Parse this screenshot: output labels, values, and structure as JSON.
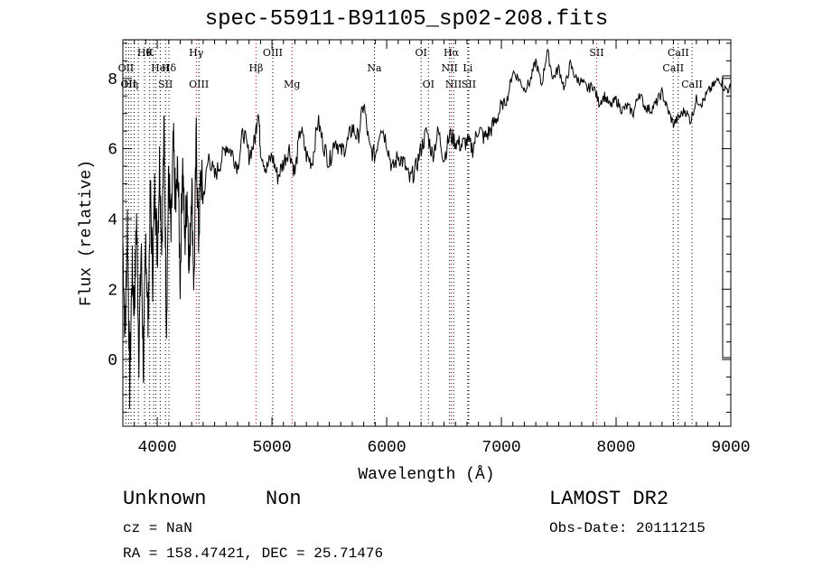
{
  "chart_data": {
    "type": "line",
    "title": "spec-55911-B91105_sp02-208.fits",
    "xlabel": "Wavelength (Å)",
    "ylabel": "Flux (relative)",
    "xlim": [
      3700,
      9000
    ],
    "ylim": [
      -1.9,
      9.1
    ],
    "x_ticks": [
      4000,
      5000,
      6000,
      7000,
      8000,
      9000
    ],
    "y_ticks": [
      0,
      2,
      4,
      6,
      8
    ],
    "series": [
      {
        "line_color": "#000000",
        "x": [
          3700,
          3720,
          3740,
          3760,
          3780,
          3800,
          3820,
          3840,
          3860,
          3880,
          3900,
          3920,
          3940,
          3960,
          3980,
          4000,
          4020,
          4040,
          4060,
          4080,
          4100,
          4120,
          4140,
          4160,
          4180,
          4200,
          4220,
          4240,
          4260,
          4280,
          4300,
          4320,
          4340,
          4360,
          4380,
          4400,
          4450,
          4500,
          4550,
          4600,
          4650,
          4700,
          4750,
          4800,
          4850,
          4880,
          4900,
          4950,
          5000,
          5050,
          5100,
          5150,
          5200,
          5250,
          5300,
          5350,
          5400,
          5450,
          5500,
          5550,
          5600,
          5650,
          5700,
          5750,
          5800,
          5850,
          5900,
          5950,
          6000,
          6050,
          6100,
          6150,
          6200,
          6250,
          6300,
          6350,
          6400,
          6450,
          6500,
          6550,
          6600,
          6650,
          6700,
          6750,
          6800,
          6850,
          6900,
          6950,
          7000,
          7050,
          7100,
          7150,
          7200,
          7250,
          7300,
          7350,
          7400,
          7450,
          7500,
          7550,
          7600,
          7650,
          7700,
          7750,
          7800,
          7850,
          7900,
          7950,
          8000,
          8050,
          8100,
          8150,
          8200,
          8250,
          8300,
          8350,
          8400,
          8450,
          8500,
          8550,
          8600,
          8650,
          8700,
          8750,
          8800,
          8850,
          8900,
          8950,
          9000
        ],
        "y": [
          3.4,
          0.6,
          4.0,
          -0.8,
          2.6,
          1.5,
          4.0,
          0.2,
          3.2,
          -0.3,
          3.5,
          1.0,
          4.8,
          2.4,
          5.1,
          3.0,
          5.6,
          3.3,
          6.6,
          1.1,
          5.4,
          3.4,
          6.2,
          4.2,
          5.5,
          2.2,
          5.8,
          3.3,
          4.8,
          2.6,
          5.2,
          2.0,
          6.4,
          3.4,
          5.3,
          4.6,
          5.8,
          5.2,
          5.6,
          6.1,
          5.9,
          5.5,
          6.5,
          5.8,
          6.2,
          7.2,
          6.0,
          5.4,
          5.8,
          5.2,
          5.6,
          6.0,
          5.3,
          6.6,
          5.8,
          5.6,
          6.8,
          6.1,
          5.6,
          6.3,
          5.9,
          6.1,
          6.6,
          6.3,
          7.3,
          6.0,
          5.8,
          6.7,
          6.2,
          5.4,
          5.8,
          5.6,
          5.1,
          5.4,
          6.0,
          6.5,
          5.8,
          6.5,
          5.7,
          6.4,
          6.2,
          6.1,
          6.2,
          6.0,
          6.6,
          6.3,
          6.5,
          6.8,
          7.2,
          7.4,
          8.2,
          8.0,
          7.7,
          7.9,
          8.5,
          7.8,
          8.8,
          8.0,
          8.3,
          7.7,
          8.4,
          8.0,
          7.9,
          7.7,
          7.8,
          7.3,
          7.5,
          7.2,
          7.4,
          7.1,
          7.2,
          7.0,
          7.6,
          7.2,
          7.1,
          7.3,
          7.6,
          7.1,
          6.7,
          6.9,
          7.1,
          6.8,
          7.4,
          7.3,
          7.6,
          7.8,
          8.0,
          7.7,
          7.7
        ]
      }
    ],
    "line_markers": [
      {
        "x": 3727,
        "label": "OII",
        "row": 2,
        "color": "#000000"
      },
      {
        "x": 3750,
        "label": "OII",
        "row": 3,
        "color": "#000000"
      },
      {
        "x": 3771,
        "label": "Hη",
        "row": 3,
        "color": "#000000"
      },
      {
        "x": 3798,
        "label": "",
        "row": 0,
        "color": "#000000"
      },
      {
        "x": 3835,
        "label": "",
        "row": 0,
        "color": "#000000"
      },
      {
        "x": 3889,
        "label": "Hθ",
        "row": 1,
        "color": "#000000"
      },
      {
        "x": 3934,
        "label": "K",
        "row": 1,
        "color": "#000000"
      },
      {
        "x": 3968,
        "label": "",
        "row": 0,
        "color": "#000000"
      },
      {
        "x": 3988,
        "label": "",
        "row": 0,
        "color": "#000000"
      },
      {
        "x": 4026,
        "label": "HeI",
        "row": 2,
        "color": "#000000"
      },
      {
        "x": 4072,
        "label": "SII",
        "row": 3,
        "color": "#000000"
      },
      {
        "x": 4102,
        "label": "Hδ",
        "row": 2,
        "color": "#000000"
      },
      {
        "x": 4340,
        "label": "Hγ",
        "row": 1,
        "color": "#c00000"
      },
      {
        "x": 4363,
        "label": "OIII",
        "row": 3,
        "color": "#000000"
      },
      {
        "x": 4861,
        "label": "Hβ",
        "row": 2,
        "color": "#c00000"
      },
      {
        "x": 5007,
        "label": "OIII",
        "row": 1,
        "color": "#000000"
      },
      {
        "x": 5175,
        "label": "Mg",
        "row": 3,
        "color": "#c00000"
      },
      {
        "x": 5893,
        "label": "Na",
        "row": 2,
        "color": "#000000"
      },
      {
        "x": 6300,
        "label": "OI",
        "row": 1,
        "color": "#000000"
      },
      {
        "x": 6364,
        "label": "OI",
        "row": 3,
        "color": "#000000"
      },
      {
        "x": 6548,
        "label": "NII",
        "row": 2,
        "color": "#000000"
      },
      {
        "x": 6563,
        "label": "Hα",
        "row": 1,
        "color": "#c00000"
      },
      {
        "x": 6583,
        "label": "NII",
        "row": 3,
        "color": "#000000"
      },
      {
        "x": 6707,
        "label": "Li",
        "row": 2,
        "color": "#000000"
      },
      {
        "x": 6716,
        "label": "SII",
        "row": 3,
        "color": "#000000"
      },
      {
        "x": 7830,
        "label": "SII",
        "row": 1,
        "color": "#c00000"
      },
      {
        "x": 8498,
        "label": "CaII",
        "row": 2,
        "color": "#000000"
      },
      {
        "x": 8542,
        "label": "CaII",
        "row": 1,
        "color": "#000000"
      },
      {
        "x": 8662,
        "label": "CaII",
        "row": 3,
        "color": "#000000"
      }
    ]
  },
  "info": {
    "class_label": "Unknown",
    "subclass_label": "Non",
    "survey_label": "LAMOST DR2",
    "cz_text": "cz = NaN",
    "obs_date_text": "Obs-Date: 20111215",
    "coords_text": "RA = 158.47421, DEC =  25.71476"
  }
}
